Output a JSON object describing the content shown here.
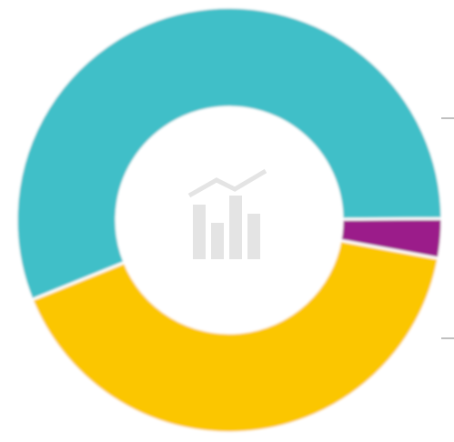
{
  "chart_data": {
    "type": "donut",
    "values": [
      56,
      3,
      41
    ],
    "colors": [
      "#3fbfc8",
      "#9b1b8a",
      "#fbc600"
    ]
  }
}
